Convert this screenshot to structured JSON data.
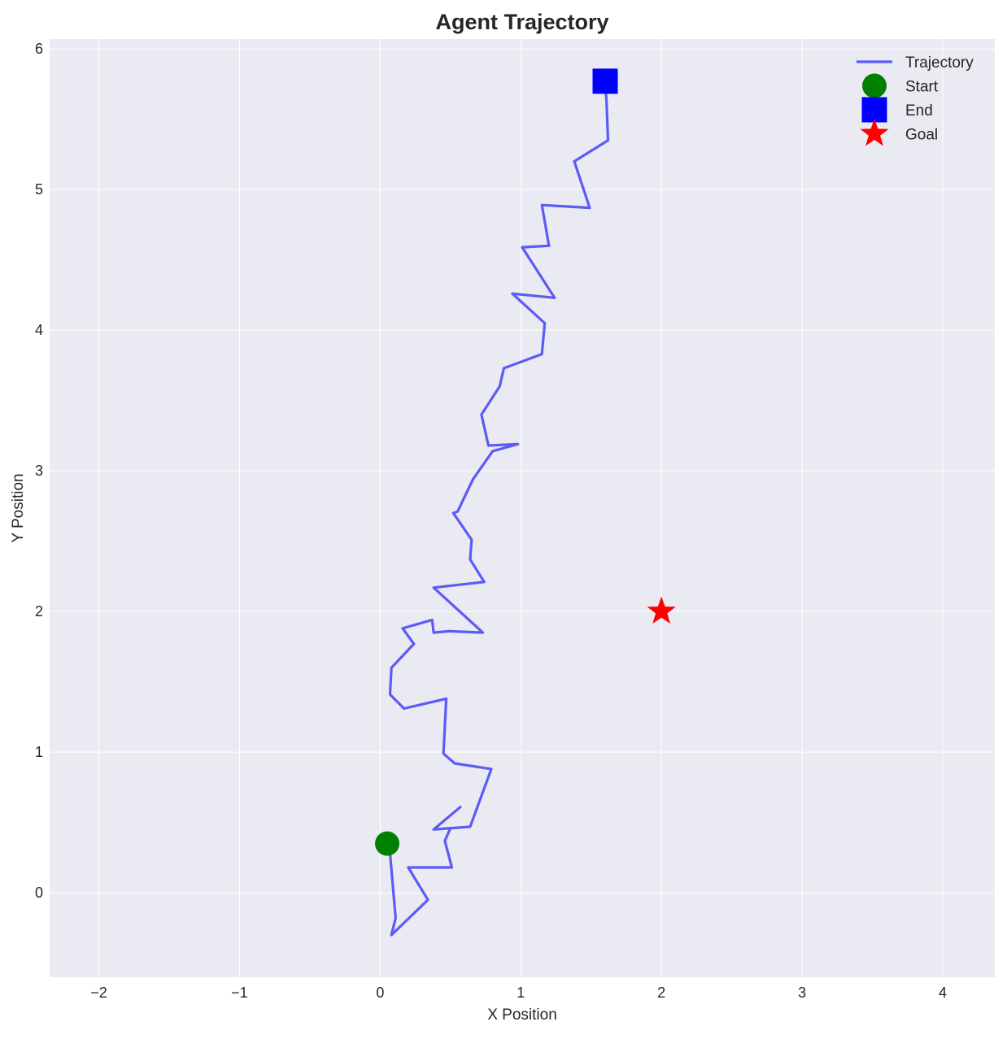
{
  "chart_data": {
    "type": "line",
    "title": "Agent Trajectory",
    "xlabel": "X Position",
    "ylabel": "Y Position",
    "xlim": [
      -2.35,
      4.37
    ],
    "ylim": [
      -0.6,
      6.07
    ],
    "xticks": [
      -2,
      -1,
      0,
      1,
      2,
      3,
      4
    ],
    "xtick_labels": [
      "−2",
      "−1",
      "0",
      "1",
      "2",
      "3",
      "4"
    ],
    "yticks": [
      0,
      1,
      2,
      3,
      4,
      5,
      6
    ],
    "ytick_labels": [
      "0",
      "1",
      "2",
      "3",
      "4",
      "5",
      "6"
    ],
    "grid": true,
    "legend_position": "top-right",
    "series": [
      {
        "name": "Trajectory",
        "color": "#5b5bf7",
        "x": [
          0.05,
          0.07,
          0.11,
          0.1,
          0.08,
          0.34,
          0.2,
          0.51,
          0.46,
          0.5,
          0.38,
          0.57,
          0.38,
          0.64,
          0.79,
          0.53,
          0.45,
          0.47,
          0.17,
          0.07,
          0.08,
          0.24,
          0.16,
          0.37,
          0.38,
          0.49,
          0.73,
          0.38,
          0.74,
          0.64,
          0.65,
          0.52,
          0.55,
          0.66,
          0.8,
          0.98,
          0.77,
          0.72,
          0.85,
          0.88,
          1.15,
          1.17,
          0.94,
          1.24,
          1.01,
          1.2,
          1.15,
          1.49,
          1.38,
          1.62,
          1.61,
          1.6
        ],
        "y": [
          0.35,
          0.28,
          -0.18,
          -0.22,
          -0.3,
          -0.05,
          0.18,
          0.18,
          0.37,
          0.46,
          0.45,
          0.61,
          0.45,
          0.47,
          0.88,
          0.92,
          0.99,
          1.38,
          1.31,
          1.41,
          1.6,
          1.77,
          1.88,
          1.94,
          1.85,
          1.86,
          1.85,
          2.17,
          2.21,
          2.37,
          2.51,
          2.7,
          2.71,
          2.94,
          3.14,
          3.19,
          3.18,
          3.4,
          3.6,
          3.73,
          3.83,
          4.05,
          4.26,
          4.23,
          4.59,
          4.6,
          4.89,
          4.87,
          5.2,
          5.35,
          5.62,
          5.77
        ]
      }
    ],
    "markers": [
      {
        "name": "Start",
        "shape": "circle",
        "color": "#008000",
        "x": 0.05,
        "y": 0.35
      },
      {
        "name": "End",
        "shape": "square",
        "color": "#0000ff",
        "x": 1.6,
        "y": 5.77
      },
      {
        "name": "Goal",
        "shape": "star",
        "color": "#ff0000",
        "x": 2.0,
        "y": 2.0
      }
    ],
    "background_color": "#eaeaf2",
    "grid_color": "#ffffff"
  }
}
